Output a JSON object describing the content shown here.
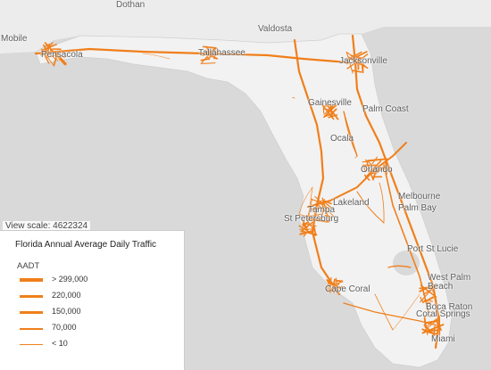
{
  "map": {
    "scale_text": "View scale: 4622324",
    "colors": {
      "water": "#d9d9d9",
      "land": "#f2f2f2",
      "roads": "#f07f1b"
    },
    "cities": {
      "dothan": "Dothan",
      "valdosta": "Valdosta",
      "mobile": "Mobile",
      "pensacola": "Pensacola",
      "tallahassee": "Tallahassee",
      "jacksonville": "Jacksonville",
      "gainesville": "Gainesville",
      "palm_coast": "Palm Coast",
      "ocala": "Ocala",
      "orlando": "Orlando",
      "melbourne": "Melbourne",
      "palm_bay": "Palm Bay",
      "lakeland": "Lakeland",
      "tampa": "Tampa",
      "st_petersburg": "St Petersburg",
      "port_st_lucie": "Port St Lucie",
      "cape_coral": "Cape Coral",
      "west_palm_beach": "West Palm\nBeach",
      "boca_raton": "Boca Raton",
      "coral_springs": "Coral Springs",
      "miami": "Miami"
    }
  },
  "legend": {
    "title": "Florida Annual Average Daily Traffic",
    "field": "AADT",
    "items": [
      {
        "label": "> 299,000"
      },
      {
        "label": "220,000"
      },
      {
        "label": "150,000"
      },
      {
        "label": "70,000"
      },
      {
        "label": "< 10"
      }
    ]
  }
}
